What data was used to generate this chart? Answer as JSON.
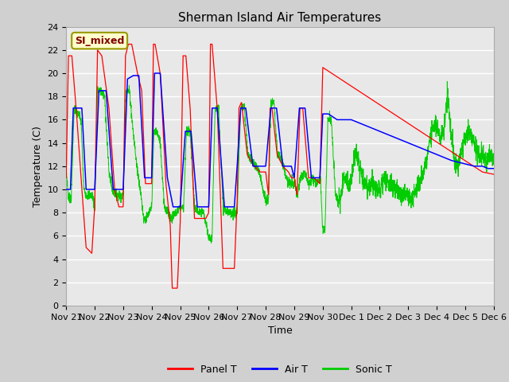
{
  "title": "Sherman Island Air Temperatures",
  "xlabel": "Time",
  "ylabel": "Temperature (C)",
  "ylim": [
    0,
    24
  ],
  "yticks": [
    0,
    2,
    4,
    6,
    8,
    10,
    12,
    14,
    16,
    18,
    20,
    22,
    24
  ],
  "background_color": "#d8d8d8",
  "plot_bg_color": "#e0e0e0",
  "annotation_text": "SI_mixed",
  "annotation_color": "#800000",
  "annotation_bg": "#ffffcc",
  "panel_t_color": "#ff0000",
  "air_t_color": "#0000ff",
  "sonic_t_color": "#00cc00",
  "title_fontsize": 11,
  "axis_label_fontsize": 9,
  "tick_label_fontsize": 8,
  "x_tick_labels": [
    "Nov 21",
    "Nov 22",
    "Nov 23",
    "Nov 24",
    "Nov 25",
    "Nov 26",
    "Nov 27",
    "Nov 28",
    "Nov 29",
    "Nov 30",
    "Dec 1",
    "Dec 2",
    "Dec 3",
    "Dec 4",
    "Dec 5",
    "Dec 6"
  ],
  "x_tick_positions": [
    0,
    1,
    2,
    3,
    4,
    5,
    6,
    7,
    8,
    9,
    10,
    11,
    12,
    13,
    14,
    15
  ]
}
